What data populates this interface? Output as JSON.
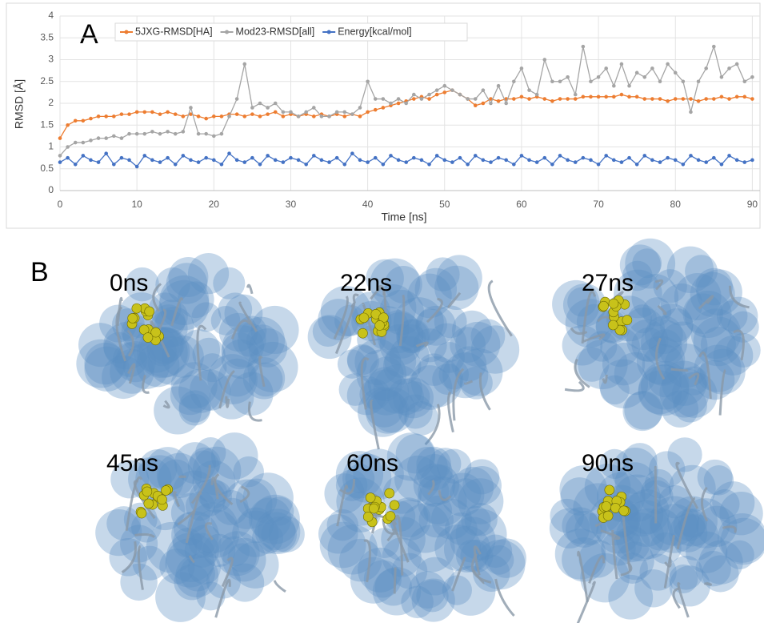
{
  "chart_data": {
    "type": "line",
    "panel_label": "A",
    "x_label": "Time [ns]",
    "y_label": "RMSD [Å]",
    "xlim": [
      0,
      91
    ],
    "xticks": [
      0,
      10,
      20,
      30,
      40,
      50,
      60,
      70,
      80,
      90
    ],
    "ylim": [
      0,
      4
    ],
    "yticks": [
      0,
      0.5,
      1,
      1.5,
      2,
      2.5,
      3,
      3.5,
      4
    ],
    "grid": true,
    "legend": "top-left",
    "x": [
      0,
      1,
      2,
      3,
      4,
      5,
      6,
      7,
      8,
      9,
      10,
      11,
      12,
      13,
      14,
      15,
      16,
      17,
      18,
      19,
      20,
      21,
      22,
      23,
      24,
      25,
      26,
      27,
      28,
      29,
      30,
      31,
      32,
      33,
      34,
      35,
      36,
      37,
      38,
      39,
      40,
      41,
      42,
      43,
      44,
      45,
      46,
      47,
      48,
      49,
      50,
      51,
      52,
      53,
      54,
      55,
      56,
      57,
      58,
      59,
      60,
      61,
      62,
      63,
      64,
      65,
      66,
      67,
      68,
      69,
      70,
      71,
      72,
      73,
      74,
      75,
      76,
      77,
      78,
      79,
      80,
      81,
      82,
      83,
      84,
      85,
      86,
      87,
      88,
      89,
      90
    ],
    "series": [
      {
        "name": "5JXG-RMSD[HA]",
        "color": "#ed7d31",
        "values": [
          1.2,
          1.5,
          1.6,
          1.6,
          1.65,
          1.7,
          1.7,
          1.7,
          1.75,
          1.75,
          1.8,
          1.8,
          1.8,
          1.75,
          1.8,
          1.75,
          1.7,
          1.75,
          1.7,
          1.65,
          1.7,
          1.7,
          1.75,
          1.75,
          1.7,
          1.75,
          1.7,
          1.75,
          1.8,
          1.7,
          1.75,
          1.7,
          1.75,
          1.7,
          1.75,
          1.7,
          1.75,
          1.7,
          1.75,
          1.7,
          1.8,
          1.85,
          1.9,
          1.95,
          2.0,
          2.05,
          2.1,
          2.15,
          2.1,
          2.2,
          2.25,
          2.3,
          2.2,
          2.1,
          1.95,
          2.0,
          2.1,
          2.05,
          2.1,
          2.1,
          2.15,
          2.1,
          2.15,
          2.1,
          2.05,
          2.1,
          2.1,
          2.1,
          2.15,
          2.15,
          2.15,
          2.15,
          2.15,
          2.2,
          2.15,
          2.15,
          2.1,
          2.1,
          2.1,
          2.05,
          2.1,
          2.1,
          2.1,
          2.05,
          2.1,
          2.1,
          2.15,
          2.1,
          2.15,
          2.15,
          2.1
        ]
      },
      {
        "name": "Mod23-RMSD[all]",
        "color": "#a5a5a5",
        "values": [
          0.8,
          1.0,
          1.1,
          1.1,
          1.15,
          1.2,
          1.2,
          1.25,
          1.2,
          1.3,
          1.3,
          1.3,
          1.35,
          1.3,
          1.35,
          1.3,
          1.35,
          1.9,
          1.3,
          1.3,
          1.25,
          1.3,
          1.7,
          2.1,
          2.9,
          1.9,
          2.0,
          1.9,
          2.0,
          1.8,
          1.8,
          1.7,
          1.8,
          1.9,
          1.7,
          1.7,
          1.8,
          1.8,
          1.75,
          1.9,
          2.5,
          2.1,
          2.1,
          2.0,
          2.1,
          2.0,
          2.2,
          2.1,
          2.2,
          2.3,
          2.4,
          2.3,
          2.2,
          2.1,
          2.1,
          2.3,
          2.0,
          2.4,
          2.0,
          2.5,
          2.8,
          2.3,
          2.2,
          3.0,
          2.5,
          2.5,
          2.6,
          2.2,
          3.3,
          2.5,
          2.6,
          2.8,
          2.4,
          2.9,
          2.4,
          2.7,
          2.6,
          2.8,
          2.5,
          2.9,
          2.7,
          2.5,
          1.8,
          2.5,
          2.8,
          3.3,
          2.6,
          2.8,
          2.9,
          2.5,
          2.6
        ]
      },
      {
        "name": "Energy[kcal/mol]",
        "color": "#4472c4",
        "values": [
          0.65,
          0.75,
          0.6,
          0.8,
          0.7,
          0.65,
          0.85,
          0.6,
          0.75,
          0.7,
          0.55,
          0.8,
          0.7,
          0.65,
          0.75,
          0.6,
          0.8,
          0.7,
          0.65,
          0.75,
          0.7,
          0.6,
          0.85,
          0.7,
          0.65,
          0.75,
          0.6,
          0.8,
          0.7,
          0.65,
          0.75,
          0.7,
          0.6,
          0.8,
          0.7,
          0.65,
          0.75,
          0.6,
          0.85,
          0.7,
          0.65,
          0.75,
          0.6,
          0.8,
          0.7,
          0.65,
          0.75,
          0.7,
          0.6,
          0.8,
          0.7,
          0.65,
          0.75,
          0.6,
          0.8,
          0.7,
          0.65,
          0.75,
          0.7,
          0.6,
          0.8,
          0.7,
          0.65,
          0.75,
          0.6,
          0.8,
          0.7,
          0.65,
          0.75,
          0.7,
          0.6,
          0.8,
          0.7,
          0.65,
          0.75,
          0.6,
          0.8,
          0.7,
          0.65,
          0.75,
          0.7,
          0.6,
          0.8,
          0.7,
          0.65,
          0.75,
          0.6,
          0.8,
          0.7,
          0.65,
          0.7
        ]
      }
    ]
  },
  "panel_b": {
    "label": "B",
    "snapshots": [
      "0ns",
      "22ns",
      "27ns",
      "45ns",
      "60ns",
      "90ns"
    ]
  }
}
